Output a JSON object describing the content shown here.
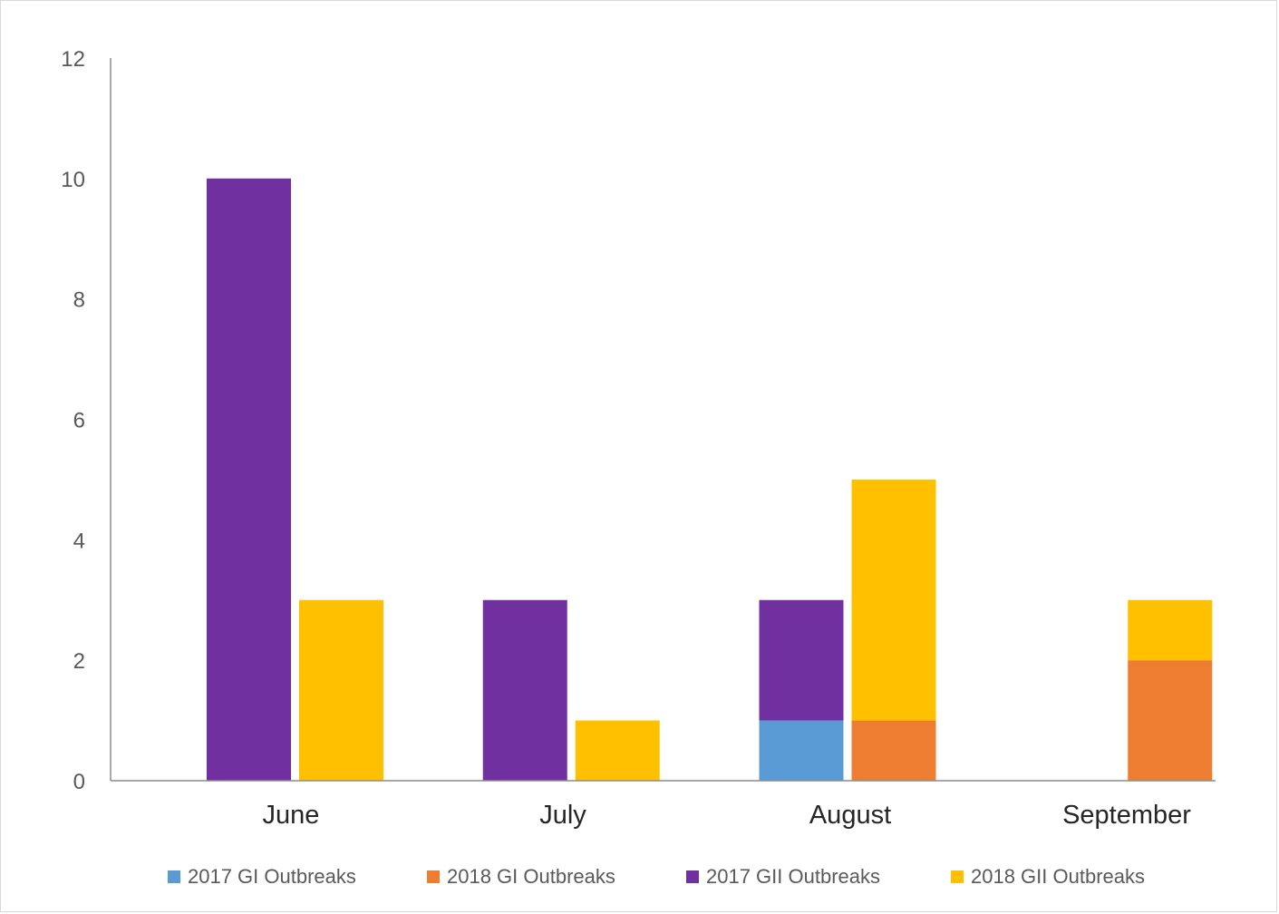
{
  "chart_data": {
    "type": "bar",
    "stacked_groups": true,
    "categories": [
      "June",
      "July",
      "August",
      "September"
    ],
    "ylim": [
      0,
      12
    ],
    "yticks": [
      0,
      2,
      4,
      6,
      8,
      10,
      12
    ],
    "grid": false,
    "legend_position": "bottom",
    "series": [
      {
        "name": "2017 GI Outbreaks",
        "stack": "2017",
        "color": "#5b9bd5",
        "values": [
          0,
          0,
          1,
          0
        ]
      },
      {
        "name": "2018 GI Outbreaks",
        "stack": "2018",
        "color": "#ed7d31",
        "values": [
          0,
          0,
          1,
          2
        ]
      },
      {
        "name": "2017 GII Outbreaks",
        "stack": "2017",
        "color": "#7030a0",
        "values": [
          10,
          3,
          2,
          0
        ]
      },
      {
        "name": "2018 GII Outbreaks",
        "stack": "2018",
        "color": "#ffc000",
        "values": [
          3,
          1,
          4,
          1
        ]
      }
    ]
  }
}
